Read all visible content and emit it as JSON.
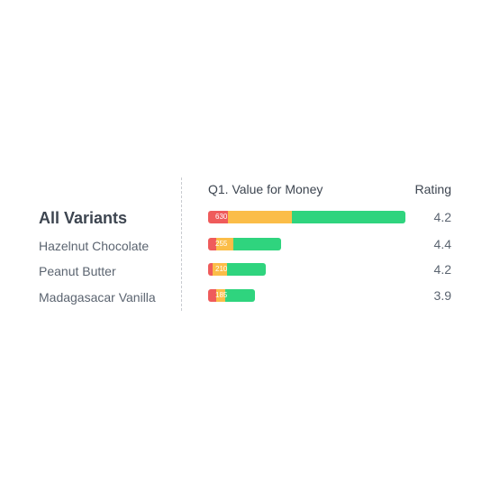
{
  "chart_data": {
    "type": "bar",
    "title": "",
    "header_question": "Q1. Value for Money",
    "header_rating": "Rating",
    "colors": {
      "negative": "#ef5b5b",
      "neutral": "#fbbd48",
      "positive": "#2fd47e"
    },
    "categories": [
      "All Variants",
      "Hazelnut Chocolate",
      "Peanut Butter",
      "Madagasacar Vanilla"
    ],
    "series": [
      {
        "values": [
          100,
          40,
          25,
          40
        ]
      },
      {
        "values": [
          330,
          90,
          70,
          50
        ]
      },
      {
        "values": [
          580,
          245,
          200,
          150
        ]
      }
    ],
    "segment_labels": [
      "630",
      "255",
      "210",
      "185"
    ],
    "ratings": [
      "4.2",
      "4.4",
      "4.2",
      "3.9"
    ],
    "highlight_first_row": true
  }
}
